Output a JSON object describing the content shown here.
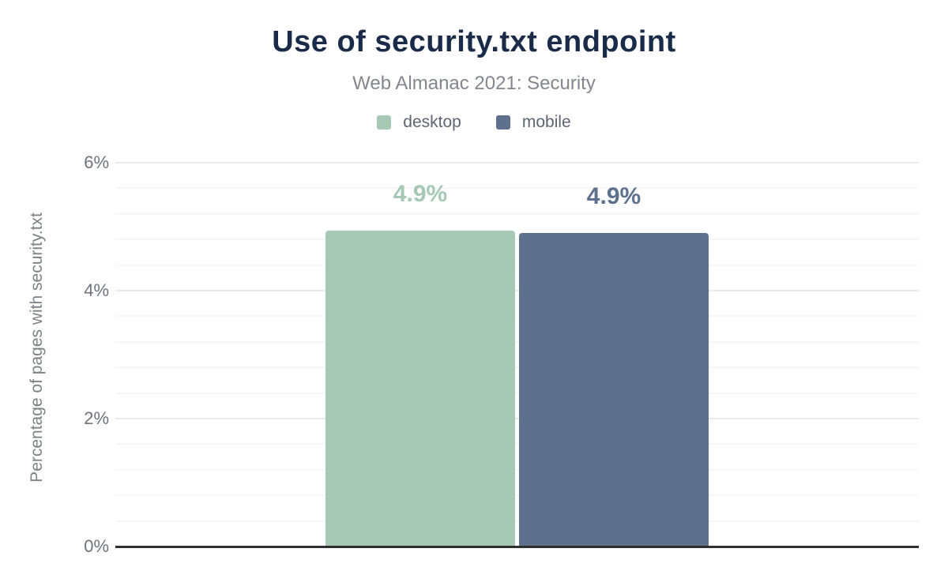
{
  "chart_data": {
    "type": "bar",
    "title": "Use of security.txt endpoint",
    "subtitle": "Web Almanac 2021: Security",
    "ylabel": "Percentage of pages with security.txt",
    "ylim": [
      0,
      6
    ],
    "yticks": [
      {
        "value": 0,
        "label": "0%"
      },
      {
        "value": 2,
        "label": "2%"
      },
      {
        "value": 4,
        "label": "4%"
      },
      {
        "value": 6,
        "label": "6%"
      }
    ],
    "minor_grid_step": 0.4,
    "grid": "on",
    "legend_position": "top",
    "categories": [
      "desktop",
      "mobile"
    ],
    "series": [
      {
        "name": "desktop",
        "value": 4.9,
        "value_precise": 4.94,
        "data_label": "4.9%",
        "color": "#a6c9b5"
      },
      {
        "name": "mobile",
        "value": 4.9,
        "value_precise": 4.9,
        "data_label": "4.9%",
        "color": "#5d708c"
      }
    ],
    "colors": {
      "title": "#1a2b49",
      "subtitle": "#83878d",
      "axis_line": "#2f2f2f",
      "tick_text": "#6d737d",
      "desktop": "#a6c9b5",
      "mobile": "#5d708c"
    }
  }
}
